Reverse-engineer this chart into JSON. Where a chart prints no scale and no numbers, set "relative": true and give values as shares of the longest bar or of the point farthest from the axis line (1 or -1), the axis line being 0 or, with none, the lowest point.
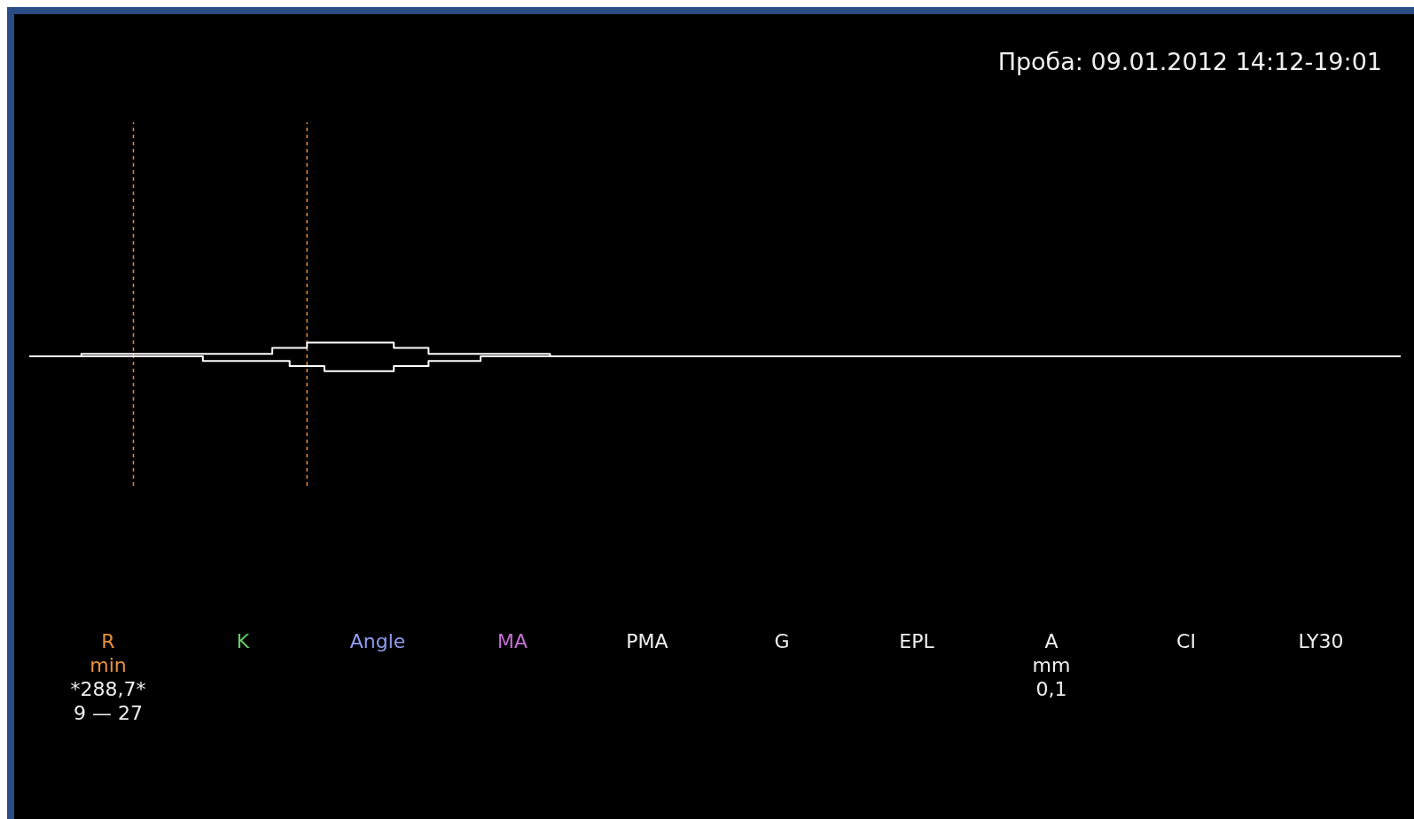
{
  "chart_data": {
    "type": "step",
    "relative": true,
    "title": "Проба: 09.01.2012 14:12-19:01",
    "categories": [
      null,
      null,
      null,
      null,
      null,
      null,
      null,
      null,
      null,
      null,
      null,
      null,
      null,
      null,
      null,
      null,
      null,
      null,
      null,
      null,
      null,
      null,
      null,
      null,
      null,
      null,
      null,
      null,
      null,
      null,
      null,
      null,
      null,
      null,
      null,
      null,
      null,
      null,
      null,
      null,
      null,
      null,
      null,
      null,
      null,
      null,
      null,
      null,
      null,
      null,
      null,
      null,
      null,
      null,
      null,
      null,
      null,
      null,
      null,
      null,
      null,
      null,
      null,
      null,
      null,
      null,
      null,
      null,
      null,
      null,
      null,
      null,
      null,
      null,
      null,
      null,
      null,
      null,
      null,
      null
    ],
    "marker": "none",
    "line_style": "solid",
    "series": [
      {
        "color": "#ffffff",
        "values": [
          0.52,
          0.52,
          0.52,
          0.61,
          0.61,
          0.61,
          0.61,
          0.61,
          0.61,
          0.61,
          0.61,
          0.61,
          0.61,
          0.61,
          0.82,
          0.82,
          1,
          1,
          1,
          1,
          1,
          0.82,
          0.82,
          0.61,
          0.61,
          0.61,
          0.61,
          0.61,
          0.61,
          0.61,
          0.52,
          0.52,
          0.52,
          0.52,
          0.52,
          0.52,
          0.52,
          0.52,
          0.52,
          0.52,
          0.52,
          0.52,
          0.52,
          0.52,
          0.52,
          0.52,
          0.52,
          0.52,
          0.52,
          0.52,
          0.52,
          0.52,
          0.52,
          0.52,
          0.52,
          0.52,
          0.52,
          0.52,
          0.52,
          0.52,
          0.52,
          0.52,
          0.52,
          0.52,
          0.52,
          0.52,
          0.52,
          0.52,
          0.52,
          0.52,
          0.52,
          0.52,
          0.52,
          0.52,
          0.52,
          0.52,
          0.52,
          0.52,
          0.52,
          0.52
        ]
      },
      {
        "color": "#ffffff",
        "values": [
          0.52,
          0.52,
          0.52,
          0.52,
          0.52,
          0.52,
          0.52,
          0.52,
          0.52,
          0.52,
          0.36,
          0.36,
          0.36,
          0.36,
          0.36,
          0.18,
          0.18,
          0,
          0,
          0,
          0,
          0.18,
          0.18,
          0.36,
          0.36,
          0.36,
          0.52,
          0.52,
          0.52,
          0.52,
          0.52,
          0.52,
          0.52,
          0.52,
          0.52,
          0.52,
          0.52,
          0.52,
          0.52,
          0.52,
          0.52,
          0.52,
          0.52,
          0.52,
          0.52,
          0.52,
          0.52,
          0.52,
          0.52,
          0.52,
          0.52,
          0.52,
          0.52,
          0.52,
          0.52,
          0.52,
          0.52,
          0.52,
          0.52,
          0.52,
          0.52,
          0.52,
          0.52,
          0.52,
          0.52,
          0.52,
          0.52,
          0.52,
          0.52,
          0.52,
          0.52,
          0.52,
          0.52,
          0.52,
          0.52,
          0.52,
          0.52,
          0.52,
          0.52,
          0.52
        ]
      }
    ],
    "annotations": [
      "R\nmin\n*288,7*\n9 — 27",
      "K",
      "Angle",
      "MA",
      "PMA",
      "G",
      "EPL",
      "A\nmm\n0,1",
      "CI",
      "LY30"
    ]
  }
}
